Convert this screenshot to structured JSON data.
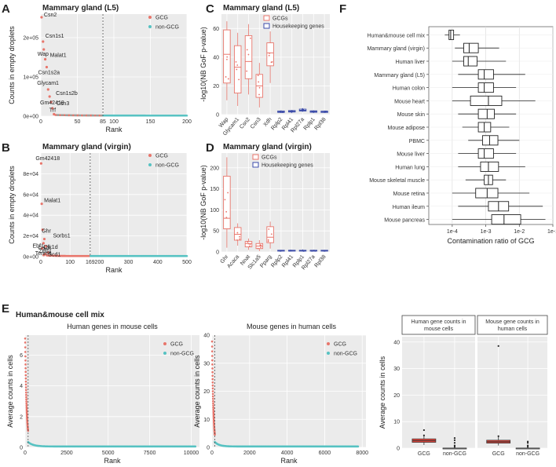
{
  "panels": {
    "A": "A",
    "B": "B",
    "C": "C",
    "D": "D",
    "E": "E",
    "F": "F"
  },
  "colors": {
    "gcg": "#e8756b",
    "non_gcg": "#56c2c2",
    "housekeeping": "#3a4aa8",
    "panel_bg": "#ebebeb",
    "box_fill": "#ffffff",
    "red_box": "#e0443a"
  },
  "chart_data": [
    {
      "id": "A",
      "type": "scatter",
      "title": "Mammary gland (L5)",
      "xlabel": "Rank",
      "ylabel": "Counts in empty droplets",
      "xlim": [
        0,
        200
      ],
      "ylim": [
        0,
        260000.0
      ],
      "x_ticks": [
        0,
        50,
        85,
        100,
        150,
        200
      ],
      "x_tick_labels": [
        "0",
        "50",
        "85",
        "100",
        "150",
        "200"
      ],
      "y_ticks": [
        0,
        100000,
        200000
      ],
      "y_tick_labels": [
        "0e+00",
        "1e+05",
        "2e+05"
      ],
      "vline": 85,
      "legend": [
        "GCG",
        "non-GCG"
      ],
      "points": [
        {
          "rank": 1,
          "value": 252000,
          "label": "Csn2"
        },
        {
          "rank": 3,
          "value": 190000,
          "label": "Csn1s1"
        },
        {
          "rank": 4,
          "value": 170000,
          "label": "Wap"
        },
        {
          "rank": 6,
          "value": 145000,
          "label": "Malat1"
        },
        {
          "rank": 8,
          "value": 125000,
          "label": "Csn1s2a"
        },
        {
          "rank": 10,
          "value": 68000,
          "label": "Glycam1"
        },
        {
          "rank": 12,
          "value": 50000,
          "label": "Csn1s2b"
        },
        {
          "rank": 14,
          "value": 36000,
          "label": "Gm42418"
        },
        {
          "rank": 16,
          "value": 20000,
          "label": "Csn3"
        },
        {
          "rank": 18,
          "value": 5000,
          "label": "Trf"
        }
      ]
    },
    {
      "id": "B",
      "type": "scatter",
      "title": "Mammary gland (virgin)",
      "xlabel": "Rank",
      "ylabel": "Counts in empty droplets",
      "xlim": [
        0,
        500
      ],
      "ylim": [
        0,
        100000.0
      ],
      "x_ticks": [
        0,
        100,
        169,
        200,
        300,
        400,
        500
      ],
      "x_tick_labels": [
        "0",
        "100",
        "169",
        "200",
        "300",
        "400",
        "500"
      ],
      "y_ticks": [
        0,
        20000,
        40000,
        60000,
        80000
      ],
      "y_tick_labels": [
        "0e+00",
        "2e+04",
        "4e+04",
        "6e+04",
        "8e+04"
      ],
      "vline": 169,
      "legend": [
        "GCG",
        "non-GCG"
      ],
      "points": [
        {
          "rank": 1,
          "value": 90000,
          "label": "Gm42418"
        },
        {
          "rank": 3,
          "value": 51000,
          "label": "Malat1"
        },
        {
          "rank": 6,
          "value": 26000,
          "label": "Ghr"
        },
        {
          "rank": 12,
          "value": 17000,
          "label": "Sorbs1"
        },
        {
          "rank": 9,
          "value": 13000,
          "label": "Car3"
        },
        {
          "rank": 18,
          "value": 10000,
          "label": "Dlk1d"
        },
        {
          "rank": 4,
          "value": 8000,
          "label": "Ebf1"
        },
        {
          "rank": 25,
          "value": 4000,
          "label": "Scd1"
        },
        {
          "rank": 15,
          "value": 2500,
          "label": "Zeb2"
        },
        {
          "rank": 10,
          "value": 1500,
          "label": "Tenm4"
        }
      ]
    },
    {
      "id": "C",
      "type": "box",
      "title": "Mammary gland (L5)",
      "ylabel": "-log10(NB GoF p-value)",
      "ylim": [
        0,
        70
      ],
      "y_ticks": [
        0,
        20,
        40,
        60
      ],
      "y_tick_labels": [
        "0",
        "20",
        "40",
        "60"
      ],
      "legend": [
        "GCGs",
        "Housekeeping genes"
      ],
      "categories": [
        "Wap",
        "Glycam1",
        "Csn2",
        "Csn3",
        "Xdh",
        "Rplp2",
        "Rpl41",
        "Rpl27a",
        "Rplp1",
        "Rpl38"
      ],
      "groups": [
        "GCG",
        "GCG",
        "GCG",
        "GCG",
        "GCG",
        "HK",
        "HK",
        "HK",
        "HK",
        "HK"
      ],
      "boxes": [
        [
          10,
          22,
          42,
          59,
          65
        ],
        [
          6,
          15,
          33,
          48,
          57
        ],
        [
          14,
          25,
          37,
          55,
          63
        ],
        [
          5,
          12,
          20,
          28,
          36
        ],
        [
          22,
          34,
          43,
          50,
          58
        ],
        [
          1,
          1.5,
          2,
          2.5,
          3
        ],
        [
          1,
          1.8,
          2.2,
          2.8,
          3.2
        ],
        [
          2,
          2.5,
          3,
          3.8,
          4.5
        ],
        [
          1,
          1.6,
          2.2,
          2.6,
          3
        ],
        [
          1,
          1.5,
          2,
          2.4,
          2.8
        ]
      ]
    },
    {
      "id": "D",
      "type": "box",
      "title": "Mammary gland (virgin)",
      "ylabel": "-log10(NB GoF p-value)",
      "ylim": [
        0,
        235
      ],
      "y_ticks": [
        0,
        50,
        100,
        150,
        200
      ],
      "y_tick_labels": [
        "0",
        "50",
        "100",
        "150",
        "200"
      ],
      "legend": [
        "GCGs",
        "Housekeeping genes"
      ],
      "categories": [
        "Ghr",
        "Acaca",
        "Nnat",
        "Slc1a5",
        "Pparg",
        "Rplp2",
        "Rpl41",
        "Rplp1",
        "Rpl27a",
        "Rpl38"
      ],
      "groups": [
        "GCG",
        "GCG",
        "GCG",
        "GCG",
        "GCG",
        "HK",
        "HK",
        "HK",
        "HK",
        "HK"
      ],
      "boxes": [
        [
          10,
          55,
          80,
          180,
          225
        ],
        [
          15,
          28,
          42,
          58,
          68
        ],
        [
          5,
          12,
          20,
          25,
          32
        ],
        [
          2,
          8,
          14,
          20,
          28
        ],
        [
          8,
          22,
          35,
          60,
          72
        ],
        [
          1,
          2,
          3,
          4,
          5
        ],
        [
          1,
          2,
          3,
          4,
          5
        ],
        [
          1,
          2,
          3,
          4,
          6
        ],
        [
          1,
          2,
          3,
          4,
          5
        ],
        [
          1,
          2,
          3,
          4,
          5
        ]
      ]
    },
    {
      "id": "E1",
      "type": "scatter",
      "suptitle": "Human&mouse cell mix",
      "title": "Human genes in mouse cells",
      "xlabel": "Rank",
      "ylabel": "Average counts in cells",
      "xlim": [
        0,
        10500
      ],
      "ylim": [
        0,
        7.3
      ],
      "x_ticks": [
        0,
        2500,
        5000,
        7500,
        10000
      ],
      "x_tick_labels": [
        "0",
        "2500",
        "5000",
        "7500",
        "10000"
      ],
      "y_ticks": [
        0,
        2,
        4,
        6
      ],
      "y_tick_labels": [
        "0",
        "2",
        "4",
        "6"
      ],
      "vline": 180,
      "legend": [
        "GCG",
        "non-GCG"
      ],
      "n_genes": 10300
    },
    {
      "id": "E2",
      "type": "scatter",
      "title": "Mouse genes in human cells",
      "xlabel": "Rank",
      "ylabel": "Average counts in cells",
      "xlim": [
        0,
        8200
      ],
      "ylim": [
        0,
        40
      ],
      "x_ticks": [
        0,
        2000,
        4000,
        6000,
        8000
      ],
      "x_tick_labels": [
        "0",
        "2000",
        "4000",
        "6000",
        "8000"
      ],
      "y_ticks": [
        0,
        10,
        20,
        30,
        40
      ],
      "y_tick_labels": [
        "0",
        "10",
        "20",
        "30",
        "40"
      ],
      "vline": 150,
      "legend": [
        "GCG",
        "non-GCG"
      ],
      "n_genes": 7800
    },
    {
      "id": "E3",
      "type": "box",
      "ylabel": "Average counts in cells",
      "ylim": [
        0,
        42
      ],
      "y_ticks": [
        0,
        10,
        20,
        30,
        40
      ],
      "y_tick_labels": [
        "0",
        "10",
        "20",
        "30",
        "40"
      ],
      "facets": [
        "Human gene counts in mouse cells",
        "Mouse gene counts in human cells"
      ],
      "categories": [
        "GCG",
        "non-GCG"
      ],
      "facet_boxes": [
        [
          [
            1.2,
            2.2,
            2.8,
            3.5,
            5
          ],
          [
            0,
            0,
            0,
            0.05,
            0.3
          ]
        ],
        [
          [
            1,
            1.9,
            2.4,
            3,
            4.5
          ],
          [
            0,
            0,
            0,
            0.05,
            0.3
          ]
        ]
      ],
      "outliers": [
        [
          [
            4.8,
            6.8
          ],
          [
            0.5,
            1,
            2,
            3,
            3.8
          ]
        ],
        [
          [
            4.5,
            38.5
          ],
          [
            0.5,
            1,
            2,
            2.5
          ]
        ]
      ]
    },
    {
      "id": "F",
      "type": "box",
      "orientation": "horizontal",
      "xlabel": "Contamination ratio of GCG",
      "xscale": "log",
      "xlim": [
        2e-05,
        0.1
      ],
      "x_ticks": [
        0.0001,
        0.001,
        0.01,
        0.1
      ],
      "x_tick_labels": [
        "1e-4",
        "1e-3",
        "1e-2",
        "1e-1"
      ],
      "categories": [
        "Human&mouse cell mix",
        "Mammary gland (virgin)",
        "Human liver",
        "Mammary gland (L5)",
        "Human colon",
        "Mouse heart",
        "Mouse skin",
        "Mouse adipose",
        "PBMC",
        "Mouse liver",
        "Human lung",
        "Mouse skeletal muscle",
        "Mouse retina",
        "Human ileum",
        "Mouse pancreas"
      ],
      "boxes": [
        [
          6e-05,
          8e-05,
          9e-05,
          0.00011,
          0.00017
        ],
        [
          0.00012,
          0.00022,
          0.00032,
          0.0006,
          0.0025
        ],
        [
          0.0001,
          0.00022,
          0.0003,
          0.00055,
          0.004
        ],
        [
          0.00015,
          0.0006,
          0.0009,
          0.0017,
          0.015
        ],
        [
          0.0001,
          0.0006,
          0.0009,
          0.0017,
          0.008
        ],
        [
          0.0001,
          0.00035,
          0.0012,
          0.003,
          0.03
        ],
        [
          0.00015,
          0.0006,
          0.0011,
          0.0018,
          0.008
        ],
        [
          0.0002,
          0.0006,
          0.0009,
          0.0014,
          0.005
        ],
        [
          0.0003,
          0.0008,
          0.0013,
          0.0023,
          0.01
        ],
        [
          0.00015,
          0.0006,
          0.0009,
          0.0017,
          0.008
        ],
        [
          0.00015,
          0.0007,
          0.0012,
          0.0024,
          0.015
        ],
        [
          0.00025,
          0.0009,
          0.0012,
          0.0016,
          0.004
        ],
        [
          0.0001,
          0.0005,
          0.0011,
          0.0023,
          0.02
        ],
        [
          0.00015,
          0.0012,
          0.0024,
          0.0048,
          0.05
        ],
        [
          0.0001,
          0.0015,
          0.0035,
          0.011,
          0.06
        ]
      ]
    }
  ]
}
